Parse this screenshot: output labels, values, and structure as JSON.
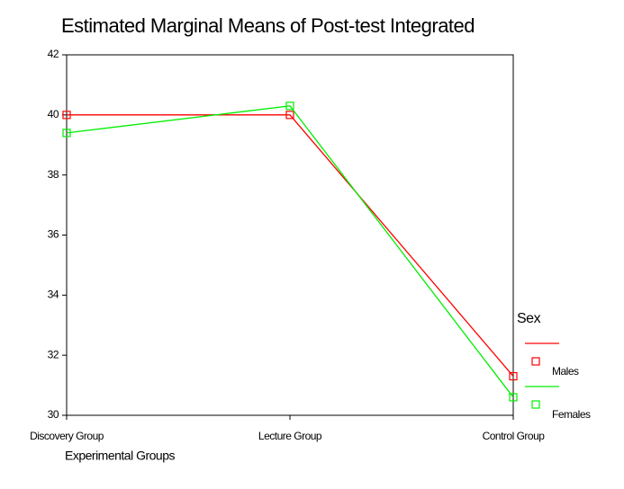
{
  "chart_data": {
    "type": "line",
    "title": "Estimated Marginal Means of Post-test Integrated",
    "x_label": "Experimental Groups",
    "categories": [
      "Discovery Group",
      "Lecture Group",
      "Control Group"
    ],
    "series": [
      {
        "name": "Males",
        "color": "#ff0000",
        "values": [
          40.0,
          40.0,
          31.3
        ]
      },
      {
        "name": "Females",
        "color": "#00ee00",
        "values": [
          39.4,
          40.3,
          30.6
        ]
      }
    ],
    "legend_title": "Sex",
    "ylim": [
      30,
      42
    ],
    "yticks": [
      30,
      32,
      34,
      36,
      38,
      40,
      42
    ]
  }
}
